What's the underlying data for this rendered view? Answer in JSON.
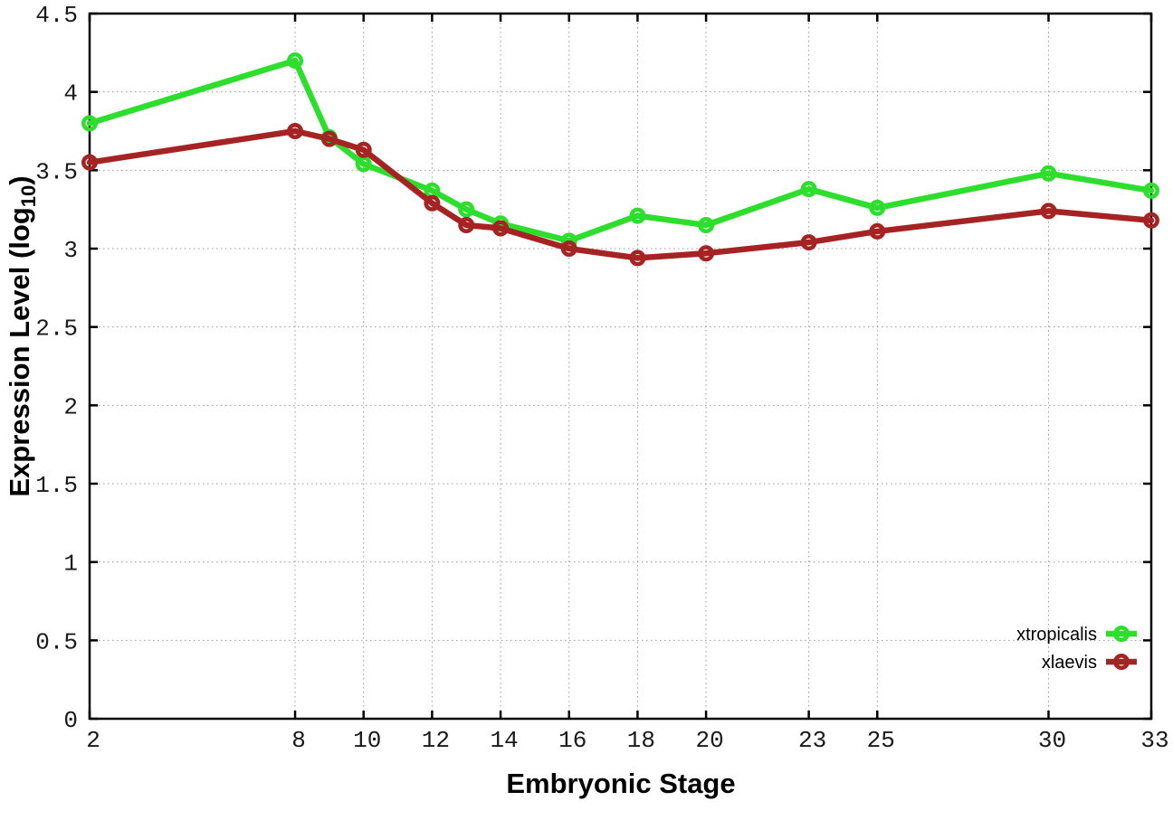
{
  "chart_data": {
    "type": "line",
    "title": "",
    "xlabel": "Embryonic Stage",
    "ylabel": "Expression Level (log10)",
    "ylabel_parts": {
      "main": "Expression Level (log",
      "sub": "10",
      "close": ")"
    },
    "xlim": [
      2,
      33
    ],
    "ylim": [
      0,
      4.5
    ],
    "x_ticks": [
      2,
      8,
      10,
      12,
      14,
      16,
      18,
      20,
      23,
      25,
      30,
      33
    ],
    "y_ticks": [
      0,
      0.5,
      1,
      1.5,
      2,
      2.5,
      3,
      3.5,
      4,
      4.5
    ],
    "y_tick_labels": [
      "0",
      "0.5",
      "1",
      "1.5",
      "2",
      "2.5",
      "3",
      "3.5",
      "4",
      "4.5"
    ],
    "grid": true,
    "legend_position": "inside-bottom-right",
    "x": [
      2,
      8,
      9,
      10,
      12,
      13,
      14,
      16,
      18,
      20,
      23,
      25,
      30,
      33
    ],
    "series": [
      {
        "name": "xtropicalis",
        "color": "#2DDE2D",
        "marker": "open-circle",
        "values": [
          3.8,
          4.2,
          3.71,
          3.54,
          3.37,
          3.25,
          3.16,
          3.05,
          3.21,
          3.15,
          3.38,
          3.26,
          3.48,
          3.37
        ]
      },
      {
        "name": "xlaevis",
        "color": "#A52323",
        "marker": "open-circle",
        "values": [
          3.55,
          3.75,
          3.7,
          3.63,
          3.29,
          3.15,
          3.13,
          3.0,
          2.94,
          2.97,
          3.04,
          3.11,
          3.24,
          3.18
        ]
      }
    ]
  },
  "colors": {
    "background": "#FFFFFF",
    "axis": "#000000",
    "grid": "#9A9A9A",
    "tick_text": "#1A1A1A"
  }
}
